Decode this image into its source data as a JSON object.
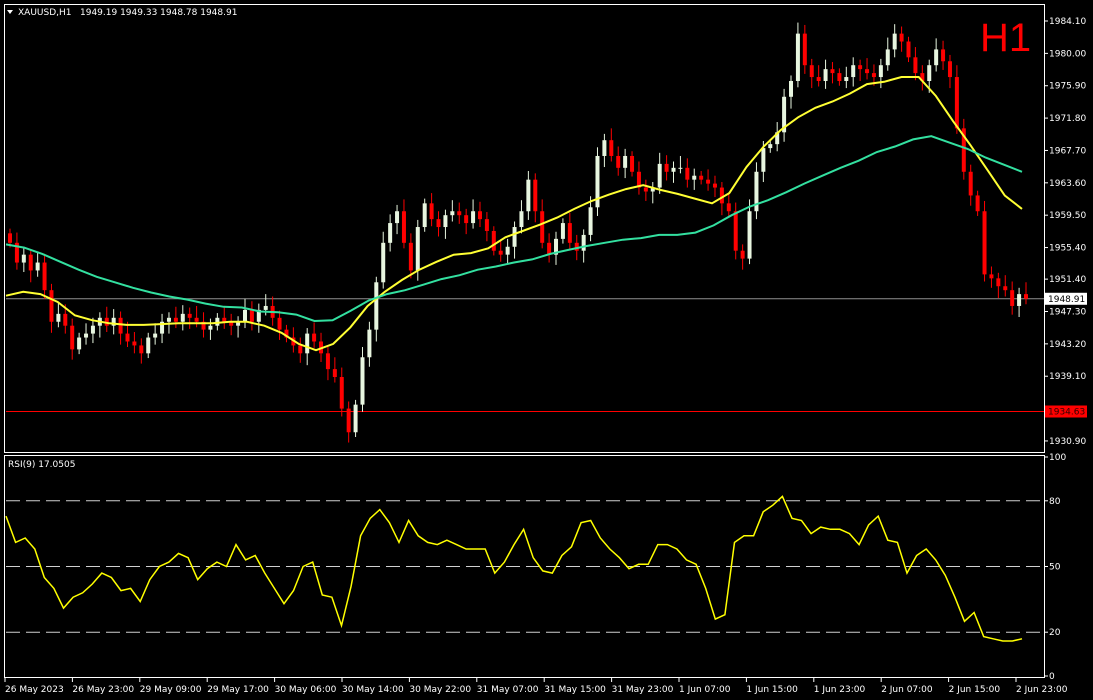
{
  "colors": {
    "background": "#000000",
    "frame": "#ffffff",
    "bull_candle": "#e8f6e0",
    "bear_candle": "#ff0000",
    "fast_ma": "#ffff33",
    "slow_ma": "#33e0a0",
    "rsi_line": "#ffff00",
    "level_line": "#d0d0d0",
    "price_line": "#909090",
    "support_line": "#ff0000",
    "timeframe_text": "#ff0000"
  },
  "header": {
    "symbol_label": "XAUUSD,H1",
    "ohlc_text": "1949.19 1949.33 1948.78 1948.91",
    "timeframe": "H1"
  },
  "rsi_header": "RSI(9) 17.0505",
  "chart_data": [
    {
      "type": "candlestick",
      "symbol": "XAUUSD",
      "timeframe": "H1",
      "ylim": [
        1929.5,
        1986.0
      ],
      "y_ticks": [
        "1984.10",
        "1980.00",
        "1975.90",
        "1971.80",
        "1967.70",
        "1963.60",
        "1959.50",
        "1955.40",
        "1951.40",
        "1947.30",
        "1943.20",
        "1939.10",
        "1930.90"
      ],
      "x_tick_labels": [
        "26 May 2023",
        "26 May 23:00",
        "29 May 09:00",
        "29 May 17:00",
        "30 May 06:00",
        "30 May 14:00",
        "30 May 22:00",
        "31 May 07:00",
        "31 May 15:00",
        "31 May 23:00",
        "1 Jun 07:00",
        "1 Jun 15:00",
        "1 Jun 23:00",
        "2 Jun 07:00",
        "2 Jun 15:00",
        "2 Jun 23:00"
      ],
      "current_price": {
        "value": 1948.91,
        "label": "1948.91"
      },
      "support_level": {
        "value": 1934.63,
        "label": "1934.63"
      },
      "series": [
        {
          "kind": "ohlc",
          "close": [
            1956.0,
            1953.5,
            1954.5,
            1952.5,
            1953.5,
            1950.0,
            1946.0,
            1947.0,
            1945.5,
            1942.5,
            1944.0,
            1944.5,
            1945.5,
            1946.5,
            1945.5,
            1946.5,
            1944.5,
            1943.5,
            1943.0,
            1942.0,
            1944.0,
            1944.5,
            1946.0,
            1946.5,
            1946.0,
            1947.0,
            1946.5,
            1946.0,
            1945.0,
            1945.5,
            1946.5,
            1946.0,
            1945.5,
            1946.0,
            1947.5,
            1946.0,
            1947.5,
            1948.0,
            1946.5,
            1945.0,
            1944.0,
            1943.0,
            1942.0,
            1944.5,
            1943.5,
            1942.0,
            1940.0,
            1939.0,
            1935.0,
            1932.0,
            1935.5,
            1941.5,
            1945.0,
            1951.0,
            1956.0,
            1958.5,
            1960.0,
            1956.0,
            1952.5,
            1958.0,
            1961.0,
            1959.0,
            1958.0,
            1959.5,
            1960.0,
            1959.5,
            1958.5,
            1960.0,
            1959.0,
            1957.5,
            1955.0,
            1954.5,
            1955.5,
            1958.0,
            1960.0,
            1964.0,
            1960.0,
            1956.0,
            1954.5,
            1956.5,
            1958.5,
            1956.0,
            1955.0,
            1957.0,
            1960.5,
            1967.0,
            1969.0,
            1967.0,
            1965.5,
            1967.0,
            1965.0,
            1963.0,
            1962.5,
            1963.0,
            1966.0,
            1965.0,
            1965.5,
            1965.5,
            1964.0,
            1964.5,
            1964.0,
            1963.5,
            1963.0,
            1961.0,
            1960.0,
            1955.0,
            1954.0,
            1960.0,
            1965.0,
            1968.0,
            1968.5,
            1970.0,
            1974.5,
            1976.5,
            1982.5,
            1978.5,
            1977.0,
            1976.5,
            1978.0,
            1977.5,
            1976.5,
            1977.0,
            1978.5,
            1978.0,
            1977.5,
            1977.0,
            1978.5,
            1980.5,
            1982.5,
            1981.5,
            1979.5,
            1977.5,
            1976.5,
            1978.5,
            1980.5,
            1979.0,
            1977.0,
            1970.5,
            1965.0,
            1962.0,
            1960.0,
            1952.0,
            1951.5,
            1950.5,
            1950.0,
            1948.0,
            1949.5,
            1948.91
          ]
        },
        {
          "kind": "line",
          "period": "fast",
          "values": [
            1949.3,
            1949.8,
            1949.5,
            1948.5,
            1946.8,
            1946.2,
            1945.8,
            1945.6,
            1945.6,
            1945.7,
            1945.8,
            1945.8,
            1945.8,
            1946.0,
            1946.0,
            1945.5,
            1944.6,
            1943.2,
            1942.4,
            1943.2,
            1945.3,
            1948.0,
            1949.8,
            1951.3,
            1952.6,
            1953.6,
            1954.5,
            1954.7,
            1955.3,
            1956.7,
            1957.5,
            1958.3,
            1959.2,
            1960.3,
            1961.3,
            1962.1,
            1962.8,
            1963.3,
            1962.7,
            1962.2,
            1961.6,
            1961.0,
            1962.3,
            1965.6,
            1968.2,
            1970.3,
            1971.9,
            1973.1,
            1973.9,
            1974.9,
            1976.1,
            1976.4,
            1977.0,
            1977.0,
            1974.6,
            1971.4,
            1968.4,
            1965.2,
            1962.0,
            1960.3
          ]
        },
        {
          "kind": "line",
          "period": "slow",
          "values": [
            1955.8,
            1955.4,
            1954.6,
            1953.6,
            1952.6,
            1951.7,
            1951.0,
            1950.3,
            1949.7,
            1949.2,
            1948.8,
            1948.3,
            1947.9,
            1947.8,
            1947.3,
            1947.2,
            1946.9,
            1946.1,
            1946.2,
            1947.4,
            1948.7,
            1949.5,
            1950.0,
            1950.7,
            1951.4,
            1951.9,
            1952.6,
            1953.0,
            1953.5,
            1953.9,
            1954.6,
            1955.1,
            1955.6,
            1956.0,
            1956.4,
            1956.6,
            1957.0,
            1957.0,
            1957.3,
            1958.2,
            1959.5,
            1960.6,
            1961.4,
            1962.4,
            1963.5,
            1964.5,
            1965.5,
            1966.4,
            1967.5,
            1968.2,
            1969.1,
            1969.5,
            1968.7,
            1967.9,
            1966.8,
            1965.9,
            1965.0
          ]
        }
      ]
    },
    {
      "type": "line",
      "title": "RSI(9) 17.0505",
      "ylim": [
        0,
        100
      ],
      "y_ticks": [
        "100",
        "80",
        "50",
        "20",
        "0"
      ],
      "levels": [
        80,
        50,
        20
      ],
      "series": [
        {
          "values": [
            73,
            61,
            63,
            58,
            45,
            40,
            31,
            36,
            38,
            42,
            47,
            45,
            39,
            40,
            34,
            44,
            50,
            52,
            56,
            54,
            44,
            49,
            52,
            50,
            60,
            53,
            55,
            47,
            40,
            33,
            39,
            50,
            52,
            37,
            36,
            23,
            41,
            64,
            72,
            76,
            70,
            61,
            71,
            64,
            61,
            60,
            62,
            60,
            58,
            58,
            58,
            47,
            52,
            60,
            67,
            54,
            48,
            47,
            55,
            59,
            70,
            71,
            63,
            58,
            54,
            49,
            51,
            51,
            60,
            60,
            58,
            53,
            51,
            40,
            26,
            28,
            61,
            64,
            64,
            75,
            78,
            82,
            72,
            71,
            65,
            68,
            67,
            67,
            65,
            60,
            69,
            73,
            62,
            61,
            47,
            55,
            58,
            53,
            46,
            36,
            25,
            29,
            18,
            17,
            16,
            16,
            17
          ]
        }
      ]
    }
  ]
}
